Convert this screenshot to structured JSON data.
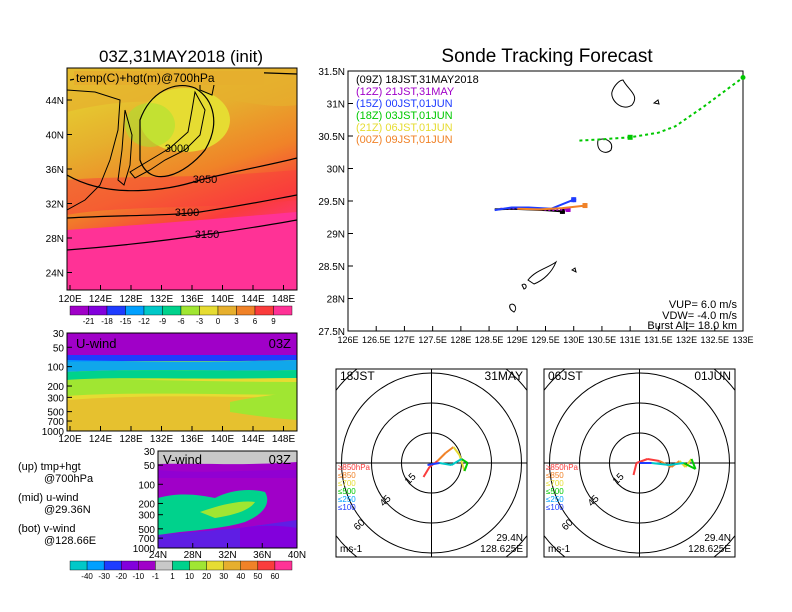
{
  "colors": {
    "temp_palette": [
      "#a000c8",
      "#8200dc",
      "#1e3cff",
      "#00a0ff",
      "#00c8c8",
      "#00d28c",
      "#a0e632",
      "#e6dc32",
      "#e6af2d",
      "#f08228",
      "#fa3c3c",
      "#ff3296"
    ],
    "wind_palette": [
      "#00c8c8",
      "#00a0ff",
      "#1e3cff",
      "#8200dc",
      "#a000c8",
      "#c8c8c8",
      "#00d28c",
      "#a0e632",
      "#e6dc32",
      "#e6af2d",
      "#f08228",
      "#fa3c3c",
      "#ff3296"
    ],
    "track": {
      "09Z": "#000000",
      "12Z": "#a000c8",
      "15Z": "#1e3cff",
      "18Z": "#00c800",
      "21Z": "#e6dc32",
      "00Z": "#f08228"
    }
  },
  "map_panel": {
    "title": "03Z,31MAY2018 (init)",
    "label": "temp(C)+hgt(m)@700hPa",
    "lat_ticks": [
      "44N",
      "40N",
      "36N",
      "32N",
      "28N",
      "24N"
    ],
    "lon_ticks": [
      "120E",
      "124E",
      "128E",
      "132E",
      "136E",
      "140E",
      "144E",
      "148E"
    ],
    "contour_labels": [
      "3000",
      "3050",
      "3100",
      "3150"
    ],
    "colorbar_labels": [
      "-21",
      "-18",
      "-15",
      "-12",
      "-9",
      "-6",
      "-3",
      "0",
      "3",
      "6",
      "9"
    ]
  },
  "u_panel": {
    "label": "U-wind",
    "time": "03Z",
    "p_ticks": [
      "30",
      "50",
      "100",
      "200",
      "300",
      "500",
      "700",
      "1000"
    ],
    "lon_ticks": [
      "120E",
      "124E",
      "128E",
      "132E",
      "136E",
      "140E",
      "144E",
      "148E"
    ]
  },
  "v_panel": {
    "label": "V-wind",
    "time": "03Z",
    "p_ticks": [
      "30",
      "50",
      "100",
      "200",
      "300",
      "500",
      "700",
      "1000"
    ],
    "lat_ticks": [
      "24N",
      "28N",
      "32N",
      "36N",
      "40N"
    ],
    "colorbar_labels": [
      "-40",
      "-30",
      "-20",
      "-10",
      "-1",
      "1",
      "10",
      "20",
      "30",
      "40",
      "50",
      "60"
    ]
  },
  "legend_notes": {
    "up_1": "(up) tmp+hgt",
    "up_2": "@700hPa",
    "mid_1": "(mid) u-wind",
    "mid_2": "@29.36N",
    "bot_1": "(bot) v-wind",
    "bot_2": "@128.66E"
  },
  "track_panel": {
    "title": "Sonde Tracking Forecast",
    "legend": [
      {
        "key": "09Z",
        "text": "(09Z)  18JST,31MAY2018"
      },
      {
        "key": "12Z",
        "text": "(12Z)  21JST,31MAY"
      },
      {
        "key": "15Z",
        "text": "(15Z)  00JST,01JUN"
      },
      {
        "key": "18Z",
        "text": "(18Z)  03JST,01JUN"
      },
      {
        "key": "21Z",
        "text": "(21Z)  06JST,01JUN"
      },
      {
        "key": "00Z",
        "text": "(00Z)  09JST,01JUN"
      }
    ],
    "params": {
      "vup": "VUP= 6.0 m/s",
      "vdw": "VDW= -4.0 m/s",
      "burst": "Burst Alt= 18.0 km"
    },
    "lat_ticks": [
      "31.5N",
      "31N",
      "30.5N",
      "30N",
      "29.5N",
      "29N",
      "28.5N",
      "28N",
      "27.5N"
    ],
    "lon_ticks": [
      "126E",
      "126.5E",
      "127E",
      "127.5E",
      "128E",
      "128.5E",
      "129E",
      "129.5E",
      "130E",
      "130.5E",
      "131E",
      "131.5E",
      "132E",
      "132.5E",
      "133E"
    ]
  },
  "chart_data": [
    {
      "type": "heatmap",
      "title": "03Z,31MAY2018 (init)",
      "field": "temp(C)+hgt(m)@700hPa",
      "x_range": [
        "120E",
        "150E"
      ],
      "y_range": [
        "22N",
        "47N"
      ],
      "color_levels": [
        -21,
        -18,
        -15,
        -12,
        -9,
        -6,
        -3,
        0,
        3,
        6,
        9
      ],
      "contours_m": [
        3000,
        3050,
        3100,
        3150
      ]
    },
    {
      "type": "heatmap",
      "field": "U-wind",
      "time": "03Z",
      "x_range": [
        "120E",
        "150E"
      ],
      "y_axis": "pressure hPa (log)",
      "y_ticks": [
        30,
        50,
        100,
        200,
        300,
        500,
        700,
        1000
      ]
    },
    {
      "type": "heatmap",
      "field": "V-wind",
      "time": "03Z",
      "x_range": [
        "24N",
        "40N"
      ],
      "y_ticks": [
        30,
        50,
        100,
        200,
        300,
        500,
        700,
        1000
      ],
      "color_levels": [
        -40,
        -30,
        -20,
        -10,
        -1,
        1,
        10,
        20,
        30,
        40,
        50,
        60
      ]
    },
    {
      "type": "line",
      "title": "Sonde Tracking Forecast",
      "xlim": [
        126,
        133
      ],
      "ylim": [
        27.5,
        31.5
      ],
      "series": [
        {
          "name": "(09Z)  18JST,31MAY2018",
          "x": [
            128.6,
            128.9,
            129.2,
            129.5,
            129.8
          ],
          "y": [
            29.37,
            29.38,
            29.37,
            29.36,
            29.34
          ]
        },
        {
          "name": "(12Z)  21JST,31MAY",
          "x": [
            128.7,
            129.0,
            129.3,
            129.6,
            129.9
          ],
          "y": [
            29.38,
            29.39,
            29.38,
            29.36,
            29.37
          ]
        },
        {
          "name": "(15Z)  00JST,01JUN",
          "x": [
            128.6,
            128.9,
            129.2,
            129.6,
            130.0
          ],
          "y": [
            29.36,
            29.4,
            29.4,
            29.38,
            29.52
          ]
        },
        {
          "name": "(18Z)  03JST,01JUN",
          "x": [
            130.1,
            130.5,
            131.0,
            131.5,
            131.8,
            132.3,
            133.0
          ],
          "y": [
            30.43,
            30.45,
            30.48,
            30.55,
            30.65,
            30.95,
            31.4
          ]
        },
        {
          "name": "(00Z)  09JST,01JUN",
          "x": [
            129.0,
            129.4,
            129.8,
            130.2
          ],
          "y": [
            29.38,
            29.37,
            29.39,
            29.43
          ]
        }
      ]
    },
    {
      "type": "scatter",
      "title": "18JST 31MAY",
      "center": [
        "29.4N",
        "128.625E"
      ],
      "unit": "ms-1",
      "ring_labels": [
        "15",
        "45",
        "60"
      ],
      "level_legend": [
        "≥850hPa",
        "≤850",
        "≤700",
        "≤500",
        "≤250",
        "≤100"
      ]
    },
    {
      "type": "scatter",
      "title": "06JST 01JUN",
      "center": [
        "29.4N",
        "128.625E"
      ],
      "unit": "ms-1",
      "ring_labels": [
        "15",
        "45",
        "60"
      ],
      "level_legend": [
        "≥850hPa",
        "≤850",
        "≤700",
        "≤500",
        "≤250",
        "≤100"
      ]
    }
  ],
  "hodo_left": {
    "time": "18JST",
    "date": "31MAY",
    "center_lat": "29.4N",
    "center_lon": "128.625E",
    "unit": "ms-1",
    "rings": [
      "15",
      "45",
      "60"
    ],
    "levels": [
      "≥850hPa",
      "≤850",
      "≤700",
      "≤500",
      "≤250",
      "≤100"
    ]
  },
  "hodo_right": {
    "time": "06JST",
    "date": "01JUN",
    "center_lat": "29.4N",
    "center_lon": "128.625E",
    "unit": "ms-1",
    "rings": [
      "15",
      "45",
      "60"
    ],
    "levels": [
      "≥850hPa",
      "≤850",
      "≤700",
      "≤500",
      "≤250",
      "≤100"
    ]
  }
}
